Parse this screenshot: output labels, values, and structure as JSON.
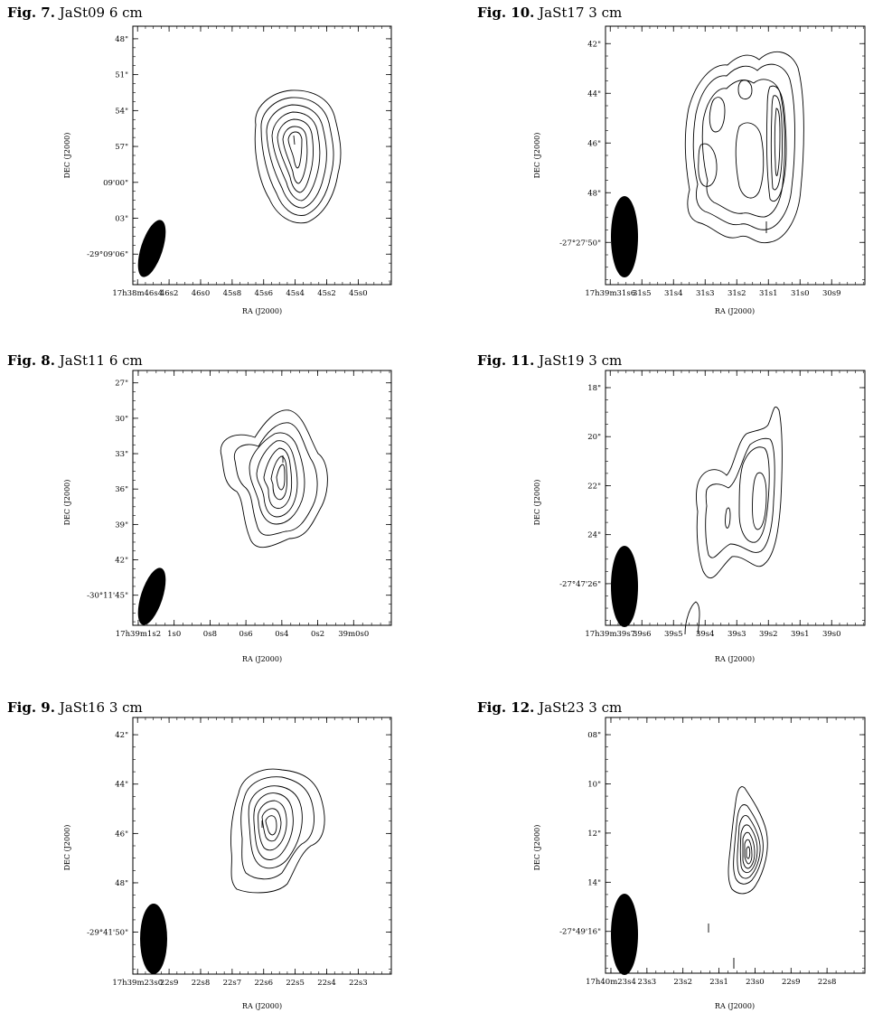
{
  "figures": [
    {
      "num": "Fig. 7.",
      "title": "JaSt09 6 cm",
      "xticks": [
        "17h38m46s4",
        "46s2",
        "46s0",
        "45s8",
        "45s6",
        "45s4",
        "45s2",
        "45s0"
      ],
      "yticks": [
        "48\"",
        "51\"",
        "54\"",
        "57\"",
        "09'00\"",
        "03\"",
        "-29°09'06\""
      ],
      "xlabel": "RA (J2000)",
      "ylabel": "DEC (J2000)"
    },
    {
      "num": "Fig. 10.",
      "title": "JaSt17 3 cm",
      "xticks": [
        "17h39m31s6",
        "31s5",
        "31s4",
        "31s3",
        "31s2",
        "31s1",
        "31s0",
        "30s9"
      ],
      "yticks": [
        "42\"",
        "44\"",
        "46\"",
        "48\"",
        "-27°27'50\""
      ],
      "xlabel": "RA (J2000)",
      "ylabel": "DEC (J2000)"
    },
    {
      "num": "Fig. 8.",
      "title": "JaSt11 6 cm",
      "xticks": [
        "17h39m1s2",
        "1s0",
        "0s8",
        "0s6",
        "0s4",
        "0s2",
        "39m0s0"
      ],
      "yticks": [
        "27\"",
        "30\"",
        "33\"",
        "36\"",
        "39\"",
        "42\"",
        "-30°11'45\""
      ],
      "xlabel": "RA (J2000)",
      "ylabel": "DEC (J2000)"
    },
    {
      "num": "Fig. 11.",
      "title": "JaSt19 3 cm",
      "xticks": [
        "17h39m39s7",
        "39s6",
        "39s5",
        "39s4",
        "39s3",
        "39s2",
        "39s1",
        "39s0"
      ],
      "yticks": [
        "18\"",
        "20\"",
        "22\"",
        "24\"",
        "-27°47'26\""
      ],
      "xlabel": "RA (J2000)",
      "ylabel": "DEC (J2000)"
    },
    {
      "num": "Fig. 9.",
      "title": "JaSt16 3 cm",
      "xticks": [
        "17h39m23s0",
        "22s9",
        "22s8",
        "22s7",
        "22s6",
        "22s5",
        "22s4",
        "22s3"
      ],
      "yticks": [
        "42\"",
        "44\"",
        "46\"",
        "48\"",
        "-29°41'50\""
      ],
      "xlabel": "RA (J2000)",
      "ylabel": "DEC (J2000)"
    },
    {
      "num": "Fig. 12.",
      "title": "JaSt23 3 cm",
      "xticks": [
        "17h40m23s4",
        "23s3",
        "23s2",
        "23s1",
        "23s0",
        "22s9",
        "22s8"
      ],
      "yticks": [
        "08\"",
        "10\"",
        "12\"",
        "14\"",
        "-27°49'16\""
      ],
      "xlabel": "RA (J2000)",
      "ylabel": "DEC (J2000)"
    }
  ]
}
